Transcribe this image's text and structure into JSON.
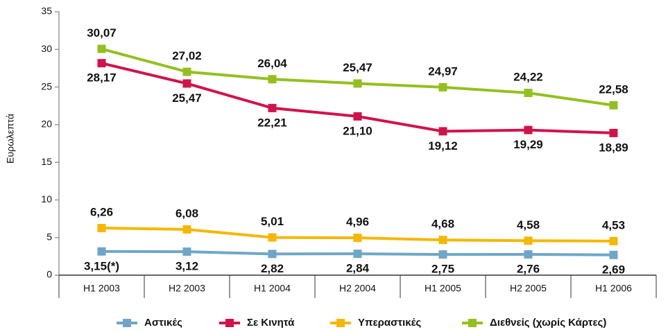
{
  "chart_data": {
    "type": "line",
    "y_label": "Ευρωλεπτά",
    "categories": [
      "H1 2003",
      "H2 2003",
      "H1 2004",
      "H2 2004",
      "H1 2005",
      "H2 2005",
      "H1 2006"
    ],
    "ylim": [
      0,
      35
    ],
    "yticks": [
      0,
      5,
      10,
      15,
      20,
      25,
      30,
      35
    ],
    "grid": false,
    "series": [
      {
        "name": "Αστικές",
        "color": "#6fa6c8",
        "values": [
          3.15,
          3.12,
          2.82,
          2.84,
          2.75,
          2.76,
          2.69
        ],
        "value_labels": [
          "3,15(*)",
          "3,12",
          "2,82",
          "2,84",
          "2,75",
          "2,76",
          "2,69"
        ]
      },
      {
        "name": "Σε Κινητά",
        "color": "#d0134b",
        "values": [
          28.17,
          25.47,
          22.21,
          21.1,
          19.12,
          19.29,
          18.89
        ],
        "value_labels": [
          "28,17",
          "25,47",
          "22,21",
          "21,10",
          "19,12",
          "19,29",
          "18,89"
        ]
      },
      {
        "name": "Υπεραστικές",
        "color": "#f4b800",
        "values": [
          6.26,
          6.08,
          5.01,
          4.96,
          4.68,
          4.58,
          4.53
        ],
        "value_labels": [
          "6,26",
          "6,08",
          "5,01",
          "4,96",
          "4,68",
          "4,58",
          "4,53"
        ]
      },
      {
        "name": "Διεθνείς (χωρίς Κάρτες)",
        "color": "#93c01f",
        "values": [
          30.07,
          27.02,
          26.04,
          25.47,
          24.97,
          24.22,
          22.58
        ],
        "value_labels": [
          "30,07",
          "27,02",
          "26,04",
          "25,47",
          "24,97",
          "24,22",
          "22,58"
        ]
      }
    ]
  }
}
